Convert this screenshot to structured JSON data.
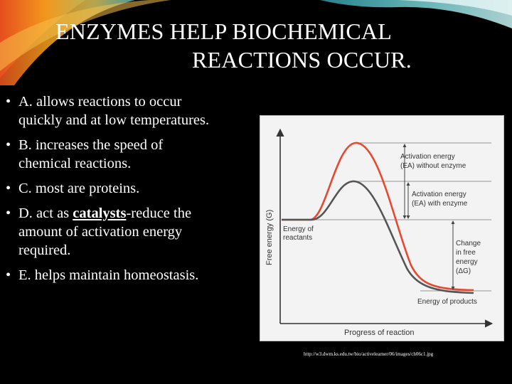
{
  "slide": {
    "title_line1": "ENZYMES HELP BIOCHEMICAL",
    "title_line2": "REACTIONS OCCUR.",
    "bullets": [
      {
        "text": "A. allows reactions to occur quickly and at low temperatures."
      },
      {
        "text": "B. increases the speed of chemical reactions."
      },
      {
        "text": "C. most are proteins."
      },
      {
        "before": "D. act as ",
        "keyword": "catalysts",
        "after": "-reduce the amount of activation energy required."
      },
      {
        "text": "E. helps maintain homeostasis."
      }
    ],
    "bullet_glyph": "•",
    "source_url": "http://w3.dwm.ks.edu.tw/bio/activelearner/06/images/ch06c1.jpg"
  },
  "figure": {
    "y_axis_label": "Free energy (G)",
    "x_axis_label": "Progress of reaction",
    "label_activation_without": "Activation energy (EA) without enzyme",
    "label_activation_with": "Activation energy (EA) with enzyme",
    "label_reactants": "Energy of reactants",
    "label_change": "Change in free energy (ΔG)",
    "label_products": "Energy of products",
    "colors": {
      "without_enzyme_curve": "#e8482e",
      "with_enzyme_curve": "#555555",
      "background": "#f3f3f3",
      "text": "#333333"
    }
  }
}
